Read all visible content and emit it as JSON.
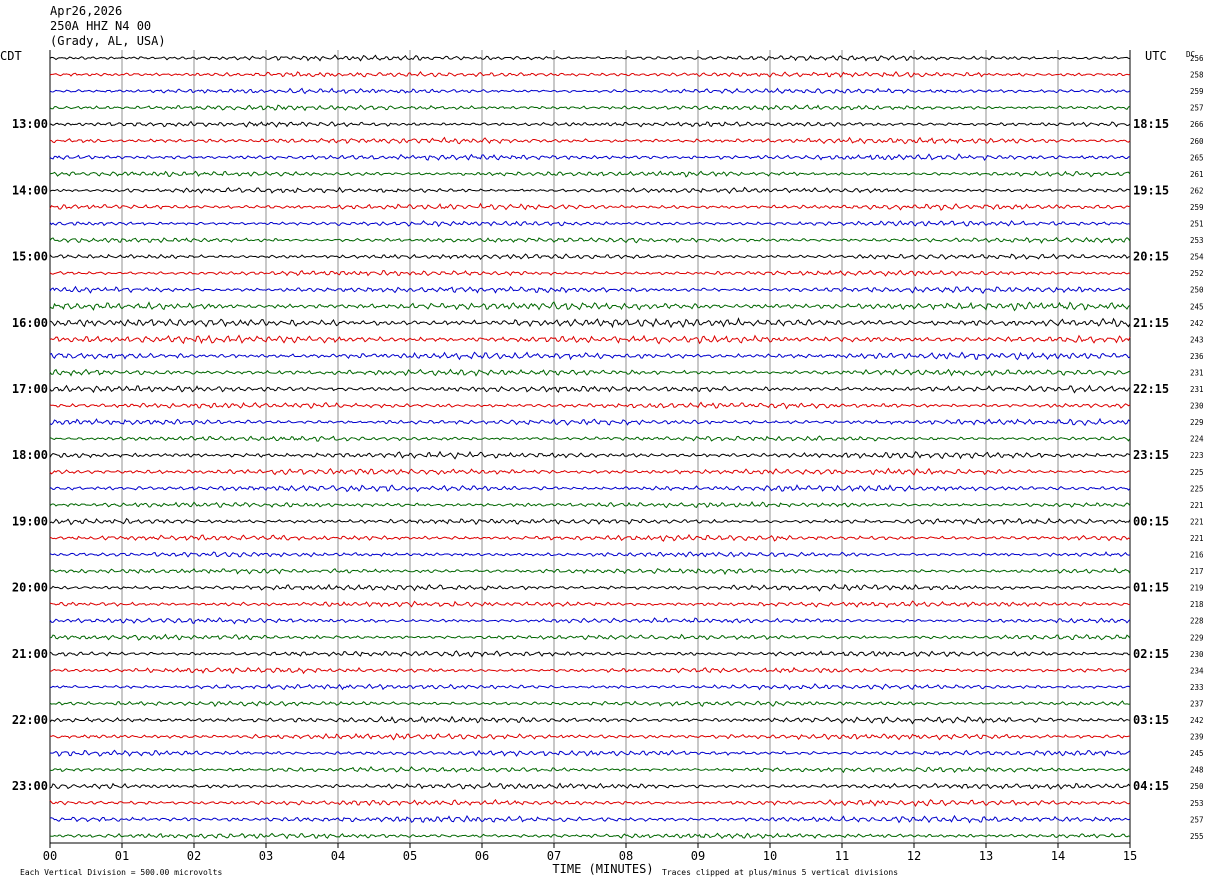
{
  "header": {
    "date": "Apr26,2026",
    "channel": "250A HHZ N4 00",
    "location": "(Grady, AL, USA)"
  },
  "chart_data": {
    "type": "line",
    "title": "",
    "left_timezone_label": "CDT",
    "right_timezone_label": "UTC",
    "dc_header": "DC",
    "xlabel": "TIME (MINUTES)",
    "x_ticks": [
      "00",
      "01",
      "02",
      "03",
      "04",
      "05",
      "06",
      "07",
      "08",
      "09",
      "10",
      "11",
      "12",
      "13",
      "14",
      "15"
    ],
    "xlim": [
      0,
      15
    ],
    "left_hour_labels": [
      "13:00",
      "14:00",
      "15:00",
      "16:00",
      "17:00",
      "18:00",
      "19:00",
      "20:00",
      "21:00",
      "22:00",
      "23:00"
    ],
    "right_hour_labels": [
      "18:15",
      "19:15",
      "20:15",
      "21:15",
      "22:15",
      "23:15",
      "00:15",
      "01:15",
      "02:15",
      "03:15",
      "04:15"
    ],
    "first_labeled_row": 4,
    "rows_per_hour": 4,
    "trace_colors": [
      "#000000",
      "#dd0000",
      "#0000cc",
      "#006600"
    ],
    "dc_offsets": [
      256,
      258,
      259,
      257,
      266,
      260,
      265,
      261,
      262,
      259,
      251,
      253,
      254,
      252,
      250,
      245,
      242,
      243,
      236,
      231,
      231,
      230,
      229,
      224,
      223,
      225,
      225,
      221,
      221,
      221,
      216,
      217,
      219,
      218,
      228,
      229,
      230,
      234,
      233,
      237,
      242,
      239,
      245,
      248,
      250,
      253,
      257,
      255
    ],
    "row_amplitudes": [
      1.0,
      1.0,
      1.0,
      1.0,
      1.0,
      1.1,
      1.1,
      1.0,
      1.0,
      1.1,
      1.0,
      1.0,
      1.0,
      1.0,
      1.2,
      1.5,
      1.6,
      1.5,
      1.3,
      1.2,
      1.3,
      1.1,
      1.1,
      1.0,
      1.2,
      1.2,
      1.2,
      1.0,
      1.1,
      1.1,
      1.0,
      1.0,
      1.1,
      1.1,
      1.0,
      1.0,
      1.1,
      1.0,
      1.0,
      1.0,
      1.2,
      1.1,
      1.1,
      1.0,
      1.1,
      1.1,
      1.2,
      1.0
    ],
    "footer_left": "Each Vertical Division =  500.00 microvolts",
    "footer_right": "Traces clipped at plus/minus 5 vertical divisions"
  }
}
